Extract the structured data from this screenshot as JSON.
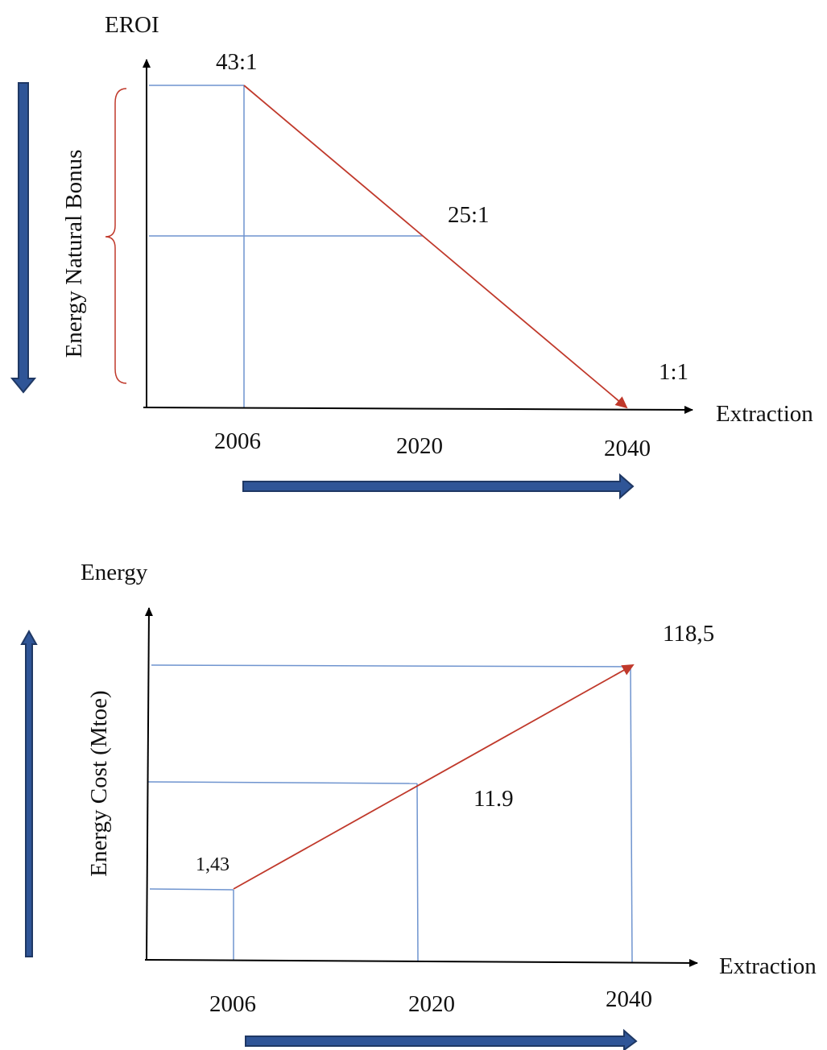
{
  "colors": {
    "axis": "#000000",
    "guide": "#6f94cf",
    "trend": "#c0392b",
    "bracket": "#c0392b",
    "big_arrow_fill": "#2f5597",
    "big_arrow_stroke": "#1f3864"
  },
  "chart_data": [
    {
      "type": "line",
      "ylabel": "EROI",
      "xlabel": "Extraction",
      "side_label": "Energy Natural Bonus",
      "categories": [
        "2006",
        "2020",
        "2040"
      ],
      "x": [
        2006,
        2020,
        2040
      ],
      "y": [
        43,
        25,
        1
      ],
      "point_labels": [
        "43:1",
        "25:1",
        "1:1"
      ],
      "trend": "decreasing"
    },
    {
      "type": "line",
      "ylabel": "Energy",
      "xlabel": "Extraction",
      "side_label": "Energy Cost (Mtoe)",
      "categories": [
        "2006",
        "2020",
        "2040"
      ],
      "x": [
        2006,
        2020,
        2040
      ],
      "y": [
        1.43,
        11.9,
        118.5
      ],
      "point_labels": [
        "1,43",
        "11.9",
        "118,5"
      ],
      "trend": "increasing"
    }
  ]
}
